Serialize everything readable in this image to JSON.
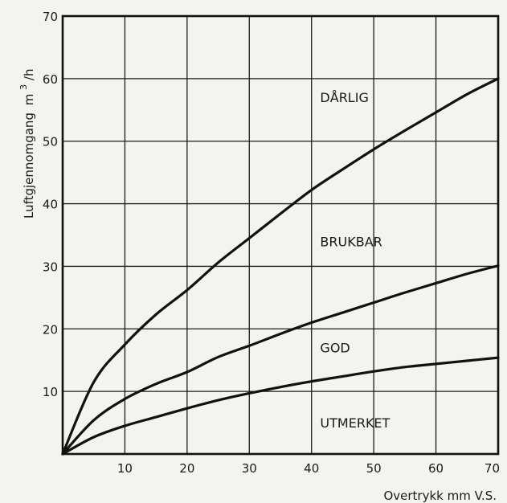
{
  "chart_data": {
    "type": "line",
    "xlabel": "Overtrykk mm V.S.",
    "ylabel": "Luftgjennomgang",
    "ylabel_unit_num": "m",
    "ylabel_unit_exp": "3",
    "ylabel_unit_den": "/h",
    "xlim": [
      0,
      70
    ],
    "ylim": [
      0,
      70
    ],
    "x_ticks": [
      10,
      20,
      30,
      40,
      50,
      60,
      70
    ],
    "y_ticks": [
      10,
      20,
      30,
      40,
      50,
      60,
      70
    ],
    "grid": true,
    "series": [
      {
        "x": [
          0,
          5,
          10,
          15,
          20,
          25,
          30,
          35,
          40,
          45,
          50,
          55,
          60,
          65,
          70
        ],
        "values": [
          0,
          11.5,
          17.5,
          22.3,
          26.2,
          30.6,
          34.5,
          38.4,
          42.2,
          45.5,
          48.7,
          51.7,
          54.6,
          57.5,
          60
        ]
      },
      {
        "x": [
          0,
          5,
          10,
          15,
          20,
          25,
          30,
          35,
          40,
          45,
          50,
          55,
          60,
          65,
          70
        ],
        "values": [
          0,
          5.4,
          8.8,
          11.2,
          13.1,
          15.5,
          17.3,
          19.2,
          21,
          22.6,
          24.2,
          25.8,
          27.3,
          28.8,
          30.1
        ]
      },
      {
        "x": [
          0,
          5,
          10,
          15,
          20,
          25,
          30,
          35,
          40,
          45,
          50,
          55,
          60,
          65,
          70
        ],
        "values": [
          0,
          2.7,
          4.5,
          5.9,
          7.3,
          8.6,
          9.7,
          10.7,
          11.6,
          12.4,
          13.2,
          13.9,
          14.4,
          14.9,
          15.4
        ]
      }
    ],
    "region_labels": [
      {
        "text": "DÅRLIG",
        "x": 45,
        "y": 57
      },
      {
        "text": "BRUKBAR",
        "x": 45,
        "y": 34
      },
      {
        "text": "GOD",
        "x": 45,
        "y": 17
      },
      {
        "text": "UTMERKET",
        "x": 45,
        "y": 5
      }
    ]
  }
}
